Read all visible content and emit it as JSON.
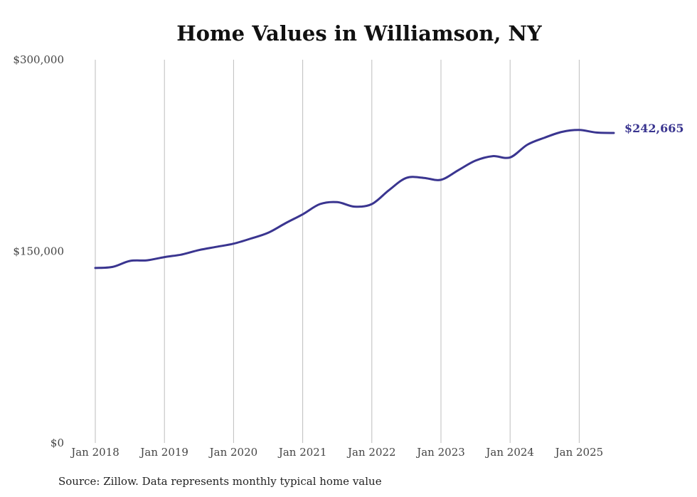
{
  "chart_data": {
    "type": "line",
    "title": "Home Values in Williamson, NY",
    "xlabel": "",
    "ylabel": "",
    "ylim": [
      0,
      300000
    ],
    "yticks": [
      {
        "value": 0,
        "label": "$0"
      },
      {
        "value": 150000,
        "label": "$150,000"
      },
      {
        "value": 300000,
        "label": "$300,000"
      }
    ],
    "xticks": [
      {
        "value": "2018-01",
        "label": "Jan 2018"
      },
      {
        "value": "2019-01",
        "label": "Jan 2019"
      },
      {
        "value": "2020-01",
        "label": "Jan 2020"
      },
      {
        "value": "2021-01",
        "label": "Jan 2021"
      },
      {
        "value": "2022-01",
        "label": "Jan 2022"
      },
      {
        "value": "2023-01",
        "label": "Jan 2023"
      },
      {
        "value": "2024-01",
        "label": "Jan 2024"
      },
      {
        "value": "2025-01",
        "label": "Jan 2025"
      }
    ],
    "grid": {
      "vertical": true,
      "horizontal": false
    },
    "legend": "none",
    "end_label": "$242,665",
    "series_color": "#3a3590",
    "series": [
      {
        "x": [
          "2018-01",
          "2018-04",
          "2018-07",
          "2018-10",
          "2019-01",
          "2019-04",
          "2019-07",
          "2019-10",
          "2020-01",
          "2020-04",
          "2020-07",
          "2020-10",
          "2021-01",
          "2021-04",
          "2021-07",
          "2021-10",
          "2022-01",
          "2022-04",
          "2022-07",
          "2022-10",
          "2023-01",
          "2023-04",
          "2023-07",
          "2023-10",
          "2024-01",
          "2024-04",
          "2024-07",
          "2024-10",
          "2025-01",
          "2025-04",
          "2025-07"
        ],
        "y": [
          137000,
          137800,
          142500,
          143000,
          145500,
          147500,
          151000,
          153500,
          156000,
          160000,
          164500,
          172000,
          179000,
          187000,
          188500,
          185000,
          187000,
          198000,
          207500,
          207500,
          206000,
          213500,
          221000,
          224500,
          223500,
          233500,
          239000,
          243500,
          245000,
          243000,
          242665
        ]
      }
    ]
  },
  "source_note": "Source: Zillow. Data represents monthly typical home value"
}
